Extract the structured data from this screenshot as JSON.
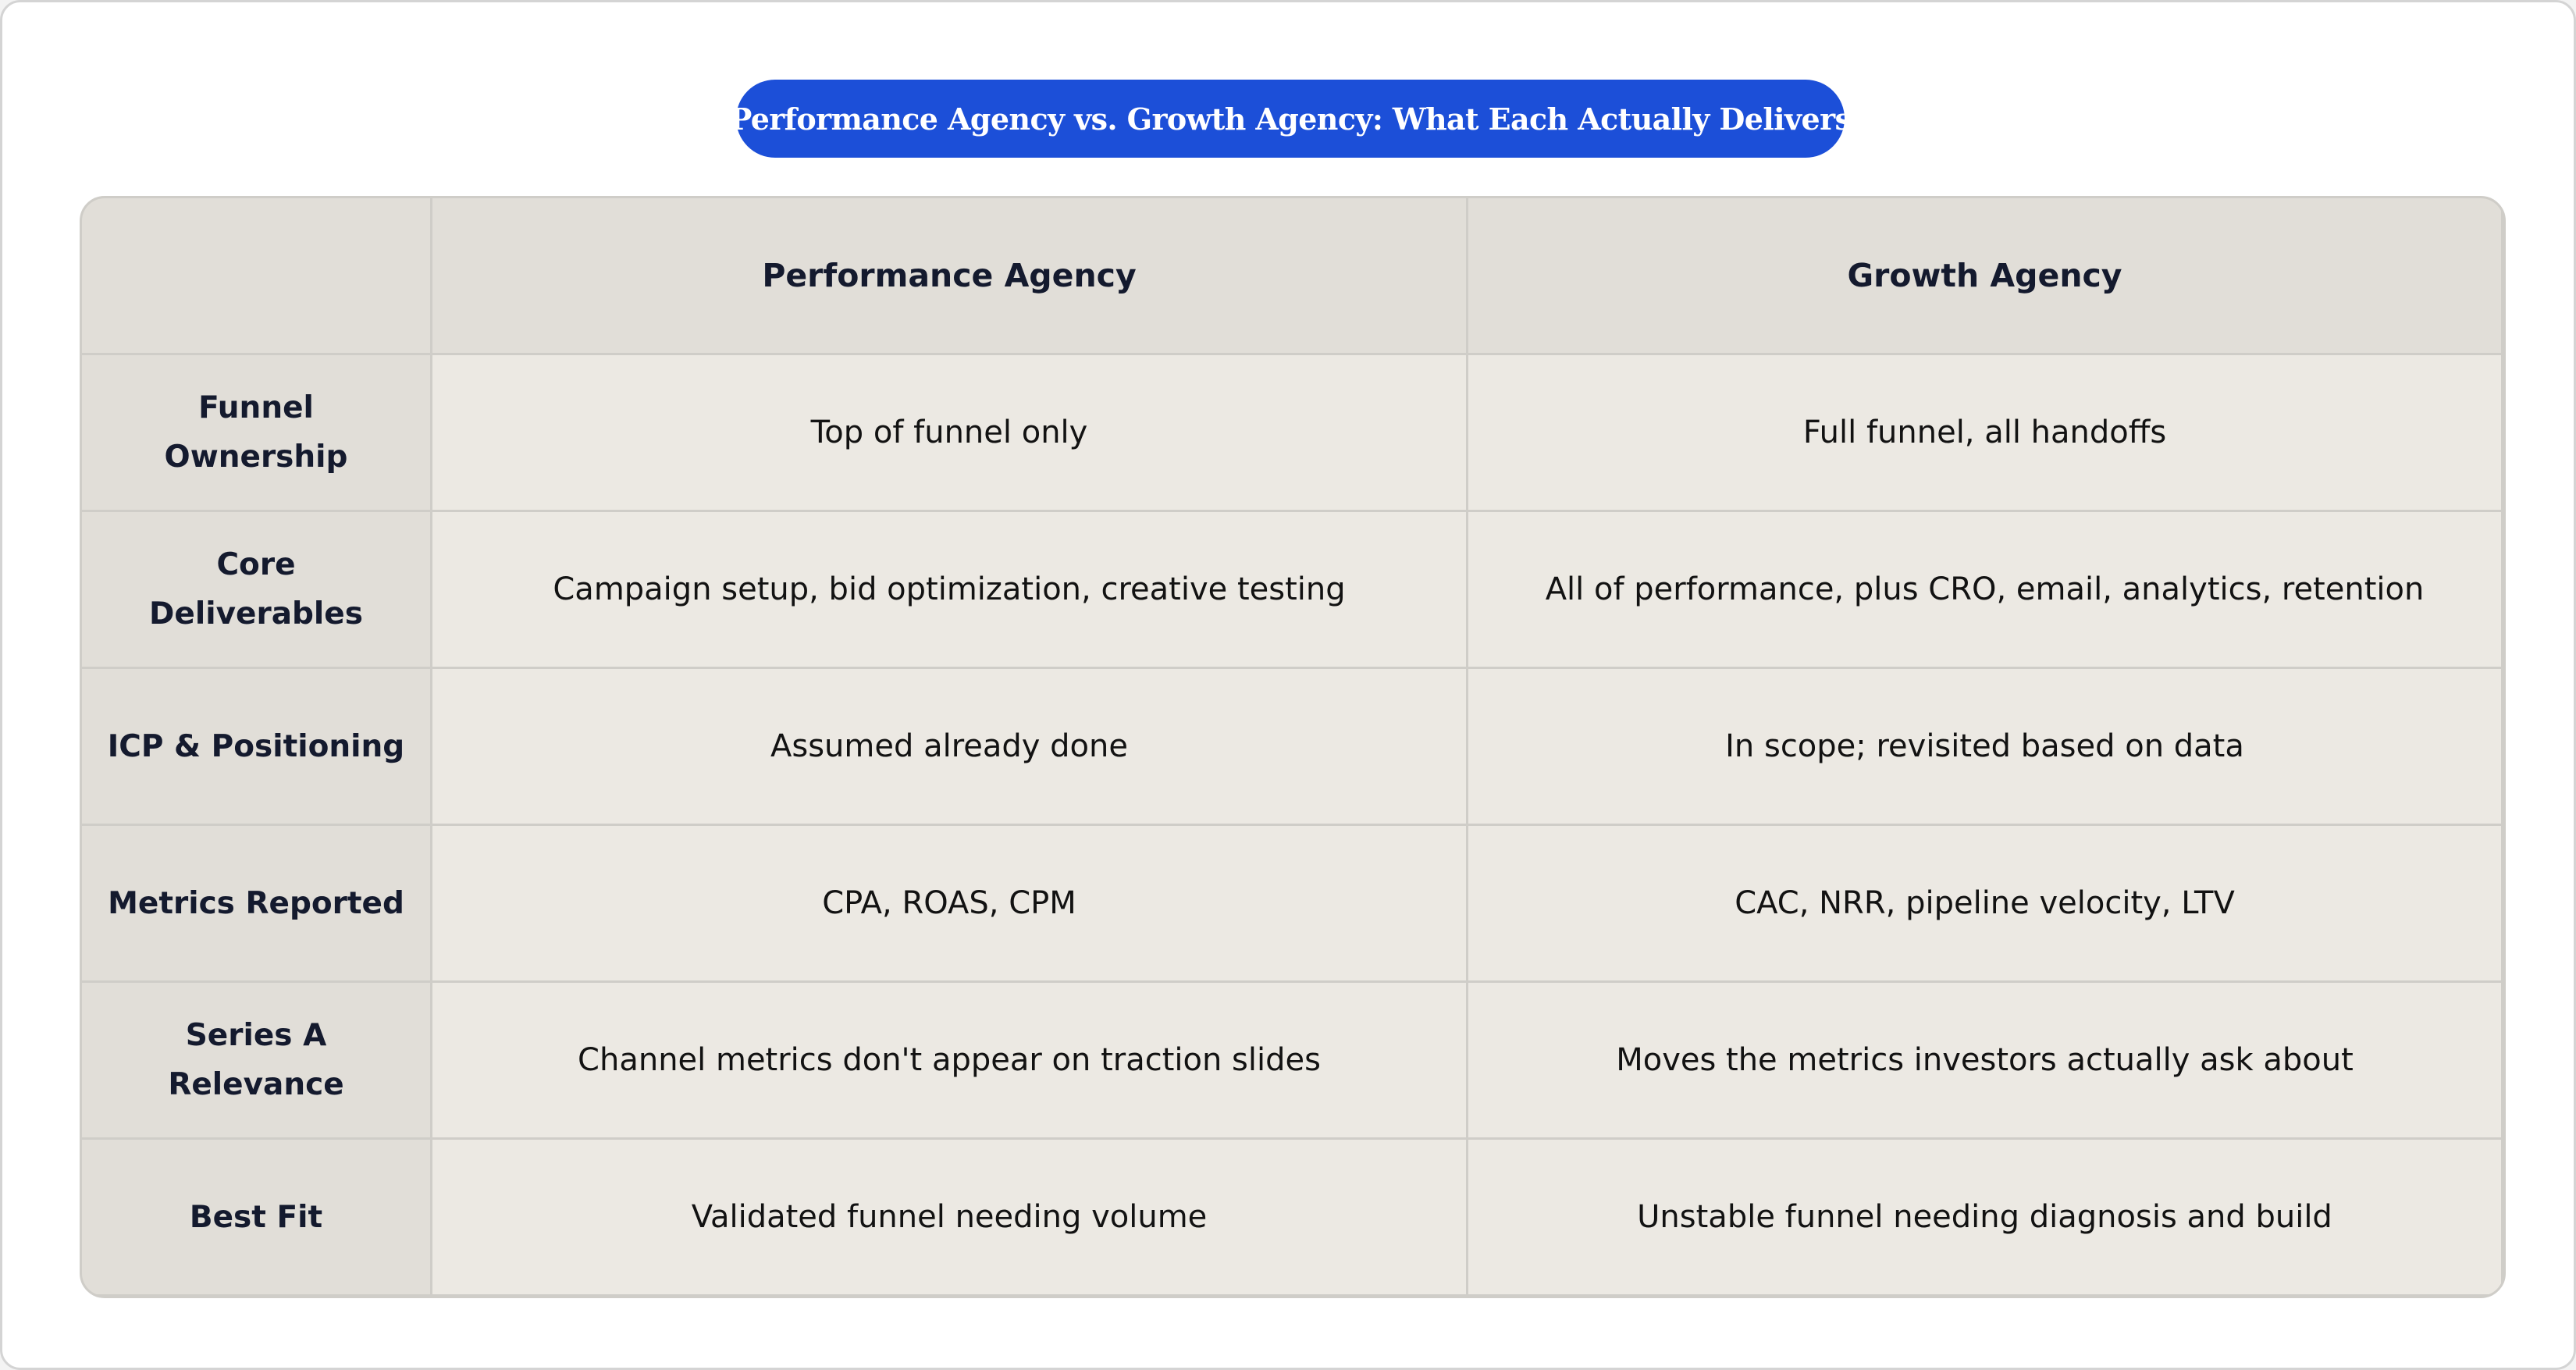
{
  "title": "Performance Agency vs. Growth Agency: What Each Actually Delivers",
  "table": {
    "columns": [
      "",
      "Performance Agency",
      "Growth Agency"
    ],
    "rows": [
      {
        "label": "Funnel Ownership",
        "performance": "Top of funnel only",
        "growth": "Full funnel, all handoffs"
      },
      {
        "label": "Core Deliverables",
        "performance": "Campaign setup, bid optimization, creative testing",
        "growth": "All of performance, plus CRO, email, analytics, retention"
      },
      {
        "label": "ICP & Positioning",
        "performance": "Assumed already done",
        "growth": "In scope; revisited based on data"
      },
      {
        "label": "Metrics Reported",
        "performance": "CPA, ROAS, CPM",
        "growth": "CAC, NRR, pipeline velocity, LTV"
      },
      {
        "label": "Series A Relevance",
        "performance": "Channel metrics don't appear on traction slides",
        "growth": "Moves the metrics investors actually ask about"
      },
      {
        "label": "Best Fit",
        "performance": "Validated funnel needing volume",
        "growth": "Unstable funnel needing diagnosis and build"
      }
    ]
  },
  "colors": {
    "accent": "#1c4fd8",
    "header_bg": "#e1ded8",
    "body_bg": "#ece9e3",
    "border": "#cfcdc8"
  }
}
